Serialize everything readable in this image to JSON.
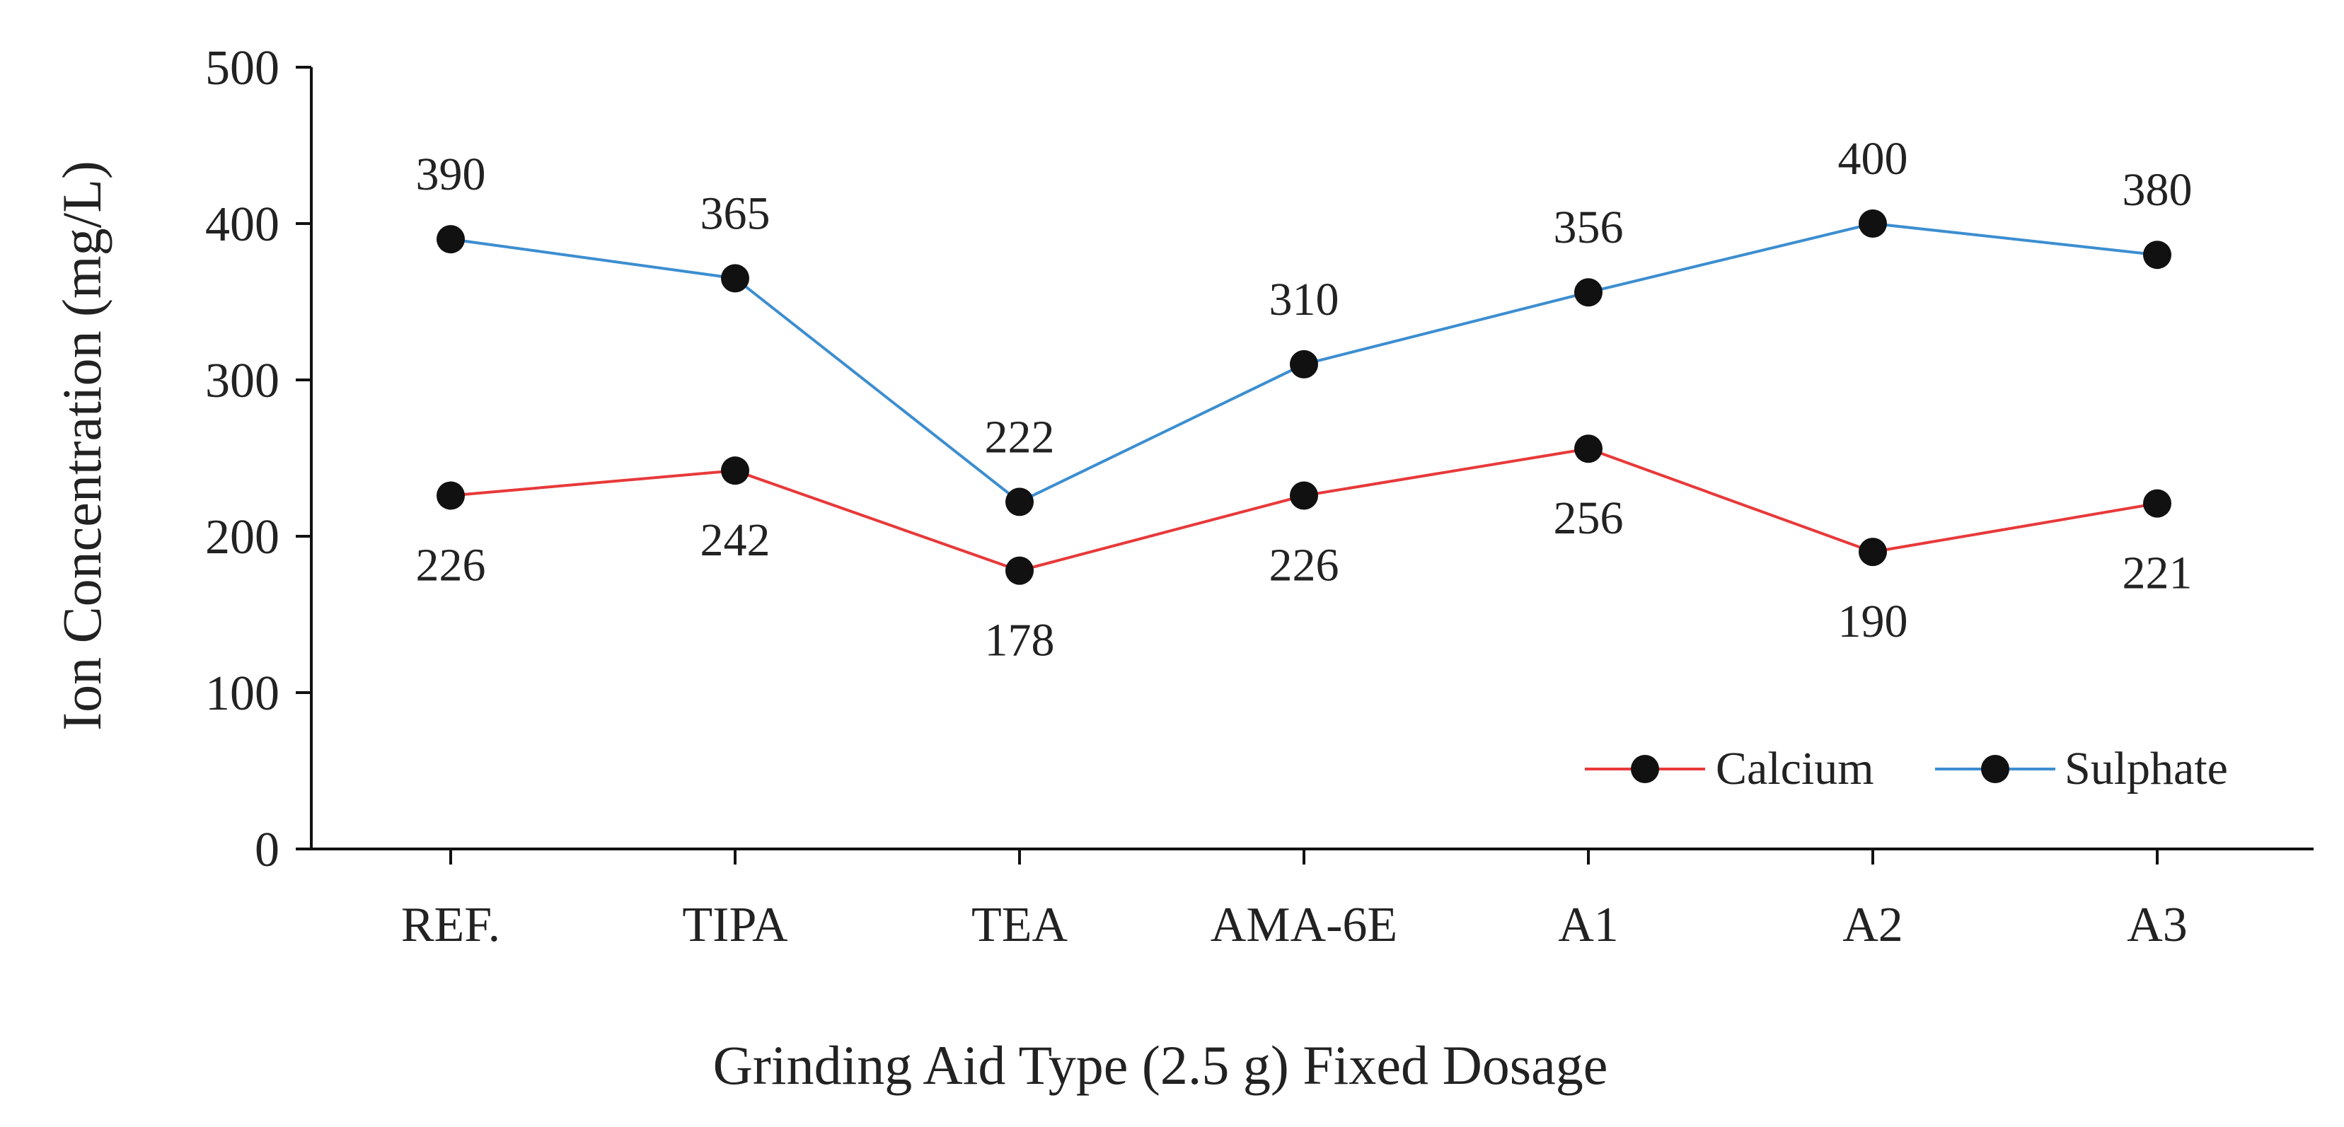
{
  "chart_data": {
    "type": "line",
    "categories": [
      "REF.",
      "TIPA",
      "TEA",
      "AMA-6E",
      "A1",
      "A2",
      "A3"
    ],
    "series": [
      {
        "name": "Calcium",
        "values": [
          226,
          242,
          178,
          226,
          256,
          190,
          221
        ],
        "color": "#e8393a",
        "label_position": "below"
      },
      {
        "name": "Sulphate",
        "values": [
          390,
          365,
          222,
          310,
          356,
          400,
          380
        ],
        "color": "#3c8ed0",
        "label_position": "above"
      }
    ],
    "marker_color": "#111111",
    "xlabel": "Grinding  Aid Type (2.5 g) Fixed Dosage",
    "ylabel": "Ion Concentration  (mg/L)",
    "ylim": [
      0,
      500
    ],
    "yticks": [
      "0",
      "100",
      "200",
      "300",
      "400",
      "500"
    ],
    "grid": false,
    "legend_position": "bottom-right"
  }
}
